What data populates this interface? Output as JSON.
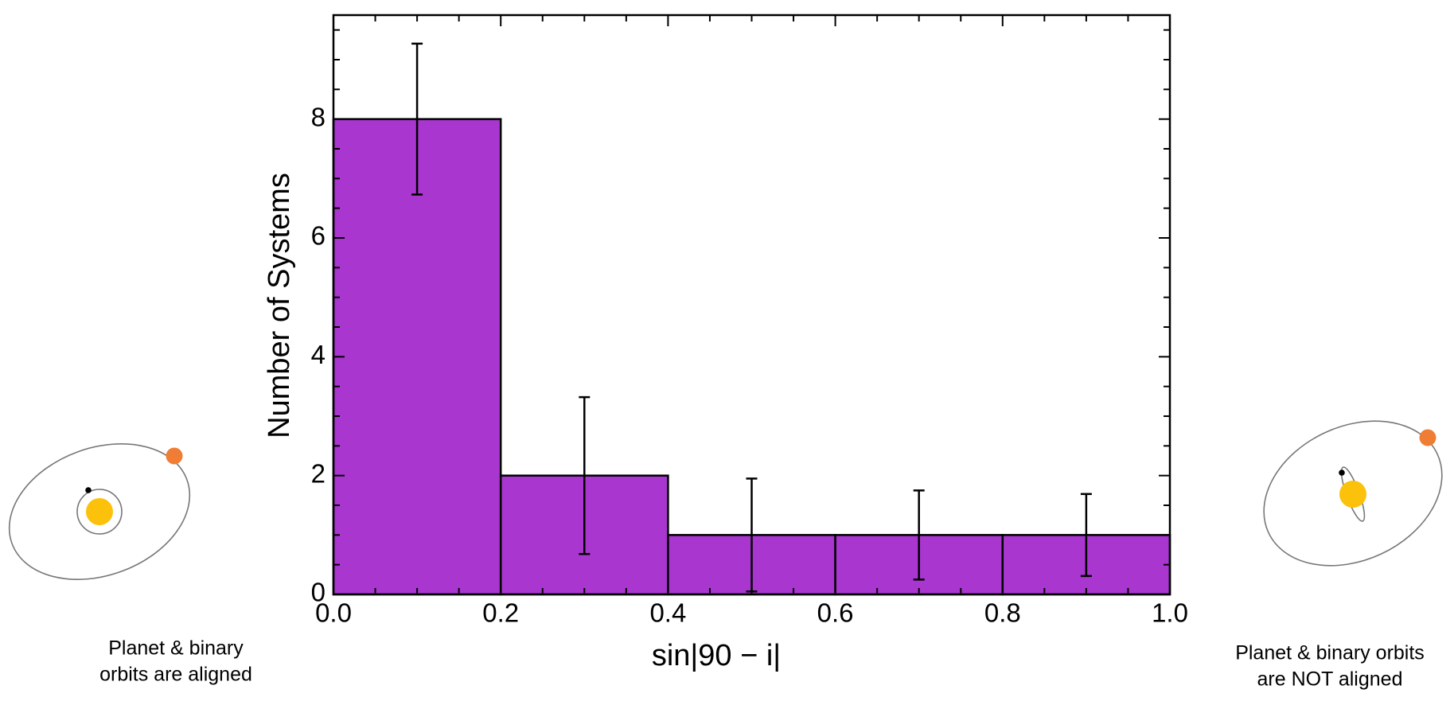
{
  "chart_data": {
    "type": "histogram",
    "xlabel": "sin|90 − i|",
    "ylabel": "Number of Systems",
    "bins": [
      0.0,
      0.2,
      0.4,
      0.6,
      0.8,
      1.0
    ],
    "values": [
      8,
      2,
      1,
      1,
      1
    ],
    "errors": [
      1.27,
      1.32,
      0.95,
      0.75,
      0.69
    ],
    "color": "#a836cf",
    "edgecolor": "#000000",
    "xlim": [
      0.0,
      1.0
    ],
    "ylim": [
      0,
      9.75
    ],
    "xticks": [
      {
        "value": 0.0,
        "label": "0.0"
      },
      {
        "value": 0.2,
        "label": "0.2"
      },
      {
        "value": 0.4,
        "label": "0.4"
      },
      {
        "value": 0.6,
        "label": "0.6"
      },
      {
        "value": 0.8,
        "label": "0.8"
      },
      {
        "value": 1.0,
        "label": "1.0"
      }
    ],
    "yticks": [
      0,
      2,
      4,
      6,
      8
    ],
    "xminorticks": [
      0.05,
      0.1,
      0.15,
      0.25,
      0.3,
      0.35,
      0.45,
      0.5,
      0.55,
      0.65,
      0.7,
      0.75,
      0.85,
      0.9,
      0.95
    ],
    "yminorticks": [
      0.5,
      1,
      1.5,
      2.5,
      3,
      3.5,
      4.5,
      5,
      5.5,
      6.5,
      7,
      7.5,
      8.5,
      9,
      9.5
    ],
    "annotations": [
      {
        "lines": [
          "Planet & binary",
          "orbits are aligned"
        ]
      },
      {
        "lines": [
          "Planet & binary orbits",
          "are NOT aligned"
        ]
      }
    ]
  }
}
